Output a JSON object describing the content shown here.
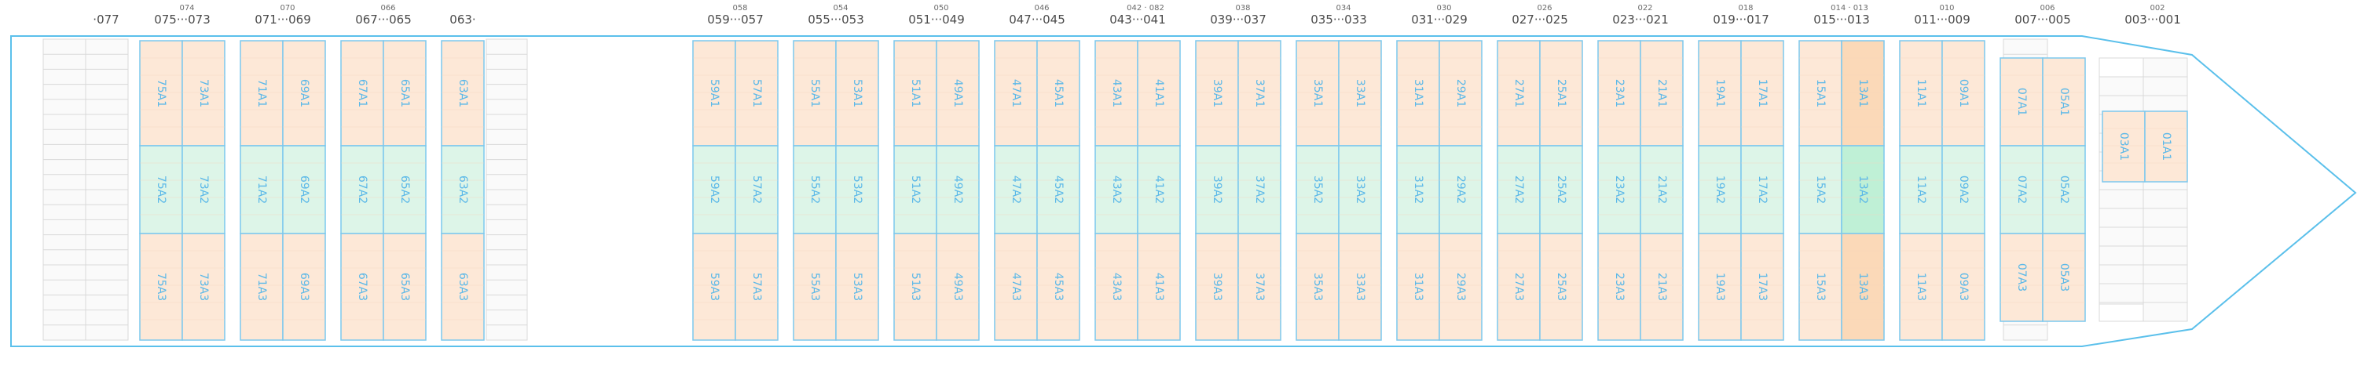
{
  "colors": {
    "hull_stroke": "#5bc0eb",
    "cell_stroke": "#7cc8ee",
    "tier_a1": "#fde8d7",
    "tier_a2": "#ddf5e8",
    "tier_a3": "#fde8d7",
    "empty_fill": "#fafafa",
    "empty_stroke": "#d9d9d9",
    "highlight": "#fbd9b8",
    "highlight_mid": "#bff0d6"
  },
  "bays": [
    {
      "id": "077",
      "top": [
        "·077"
      ],
      "sub": "",
      "cells": []
    },
    {
      "id": "075",
      "top": [
        "075··",
        "·073"
      ],
      "sub": "074",
      "cells": [
        "75",
        "73"
      ]
    },
    {
      "id": "071",
      "top": [
        "071··",
        "·069"
      ],
      "sub": "070",
      "cells": [
        "71",
        "69"
      ]
    },
    {
      "id": "067",
      "top": [
        "067··",
        "·065"
      ],
      "sub": "066",
      "cells": [
        "67",
        "65"
      ]
    },
    {
      "id": "063",
      "top": [
        "063·"
      ],
      "sub": "",
      "cells": [
        "63"
      ]
    },
    {
      "id": "059",
      "top": [
        "059··",
        "·057"
      ],
      "sub": "058",
      "cells": [
        "59",
        "57"
      ]
    },
    {
      "id": "055",
      "top": [
        "055··",
        "·053"
      ],
      "sub": "054",
      "cells": [
        "55",
        "53"
      ]
    },
    {
      "id": "051",
      "top": [
        "051··",
        "·049"
      ],
      "sub": "050",
      "cells": [
        "51",
        "49"
      ]
    },
    {
      "id": "047",
      "top": [
        "047··",
        "·045"
      ],
      "sub": "046",
      "cells": [
        "47",
        "45"
      ]
    },
    {
      "id": "043",
      "top": [
        "043··",
        "·041"
      ],
      "sub": "042 · 082",
      "cells": [
        "43",
        "41"
      ]
    },
    {
      "id": "039",
      "top": [
        "039··",
        "·037"
      ],
      "sub": "038",
      "cells": [
        "39",
        "37"
      ]
    },
    {
      "id": "035",
      "top": [
        "035··",
        "·033"
      ],
      "sub": "034",
      "cells": [
        "35",
        "33"
      ]
    },
    {
      "id": "031",
      "top": [
        "031··",
        "·029"
      ],
      "sub": "030",
      "cells": [
        "31",
        "29"
      ]
    },
    {
      "id": "027",
      "top": [
        "027··",
        "·025"
      ],
      "sub": "026",
      "cells": [
        "27",
        "25"
      ]
    },
    {
      "id": "023",
      "top": [
        "023··",
        "·021"
      ],
      "sub": "022",
      "cells": [
        "23",
        "21"
      ]
    },
    {
      "id": "019",
      "top": [
        "019··",
        "·017"
      ],
      "sub": "018",
      "cells": [
        "19",
        "17"
      ]
    },
    {
      "id": "015",
      "top": [
        "015··",
        "·013"
      ],
      "sub": "014 · 013",
      "cells": [
        "15",
        "13"
      ]
    },
    {
      "id": "011",
      "top": [
        "011··",
        "·009"
      ],
      "sub": "010",
      "cells": [
        "11",
        "09"
      ]
    },
    {
      "id": "007",
      "top": [
        "007··",
        "·005"
      ],
      "sub": "006",
      "cells": [
        "07",
        "05"
      ]
    },
    {
      "id": "003",
      "top": [
        "003··",
        "·001"
      ],
      "sub": "002",
      "cells": [
        "03",
        "01"
      ]
    }
  ],
  "tiers": [
    "A1",
    "A2",
    "A3"
  ]
}
